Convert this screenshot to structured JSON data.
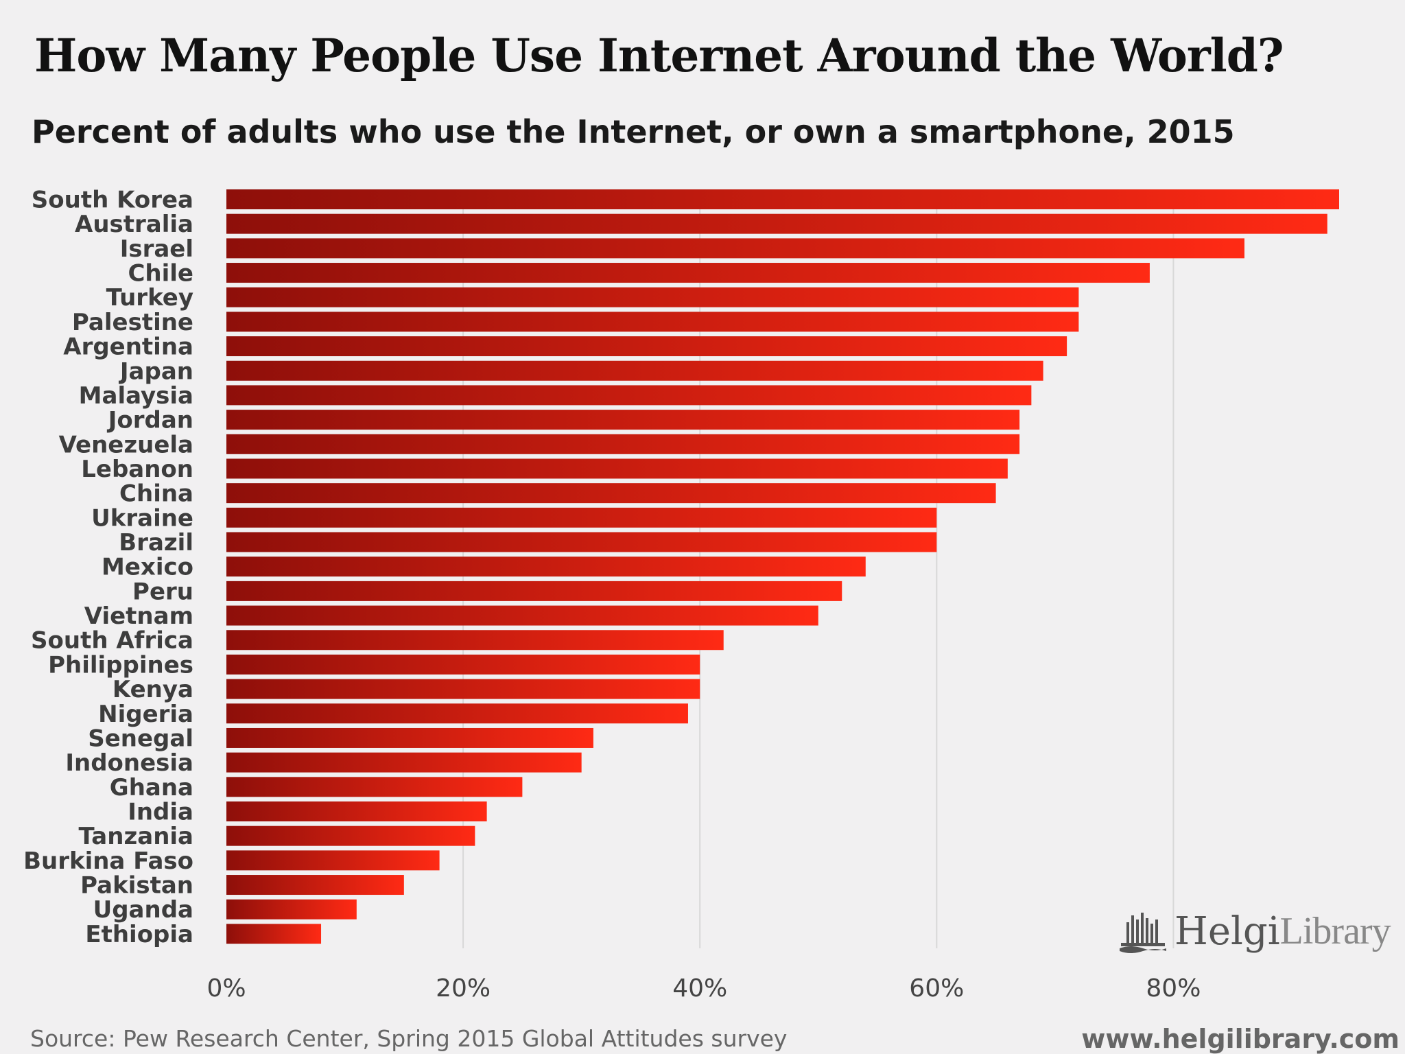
{
  "header": {
    "title": "How Many People Use Internet Around the World?",
    "subtitle": "Percent of adults who use the Internet, or own a smartphone, 2015"
  },
  "footer": {
    "source": "Source: Pew Research Center, Spring 2015 Global Attitudes survey",
    "website": "www.helgilibrary.com"
  },
  "logo": {
    "strong": "Helgi",
    "light": "Library"
  },
  "colors": {
    "bar_dark": "#8e0f0a",
    "bar_light": "#ff2a14",
    "grid": "#d8d8d8"
  },
  "chart_data": {
    "type": "bar",
    "orientation": "horizontal",
    "title": "How Many People Use Internet Around the World?",
    "subtitle": "Percent of adults who use the Internet, or own a smartphone, 2015",
    "categories": [
      "South Korea",
      "Australia",
      "Israel",
      "Chile",
      "Turkey",
      "Palestine",
      "Argentina",
      "Japan",
      "Malaysia",
      "Jordan",
      "Venezuela",
      "Lebanon",
      "China",
      "Ukraine",
      "Brazil",
      "Mexico",
      "Peru",
      "Vietnam",
      "South Africa",
      "Philippines",
      "Kenya",
      "Nigeria",
      "Senegal",
      "Indonesia",
      "Ghana",
      "India",
      "Tanzania",
      "Burkina Faso",
      "Pakistan",
      "Uganda",
      "Ethiopia"
    ],
    "values": [
      94,
      93,
      86,
      78,
      72,
      72,
      71,
      69,
      68,
      67,
      67,
      66,
      65,
      60,
      60,
      54,
      52,
      50,
      42,
      40,
      40,
      39,
      31,
      30,
      25,
      22,
      21,
      18,
      15,
      11,
      8
    ],
    "xlim": [
      0,
      94
    ],
    "xticks": [
      0,
      20,
      40,
      60,
      80
    ],
    "xtick_labels": [
      "0%",
      "20%",
      "40%",
      "60%",
      "80%"
    ],
    "grid": true,
    "xlabel": "",
    "ylabel": ""
  }
}
